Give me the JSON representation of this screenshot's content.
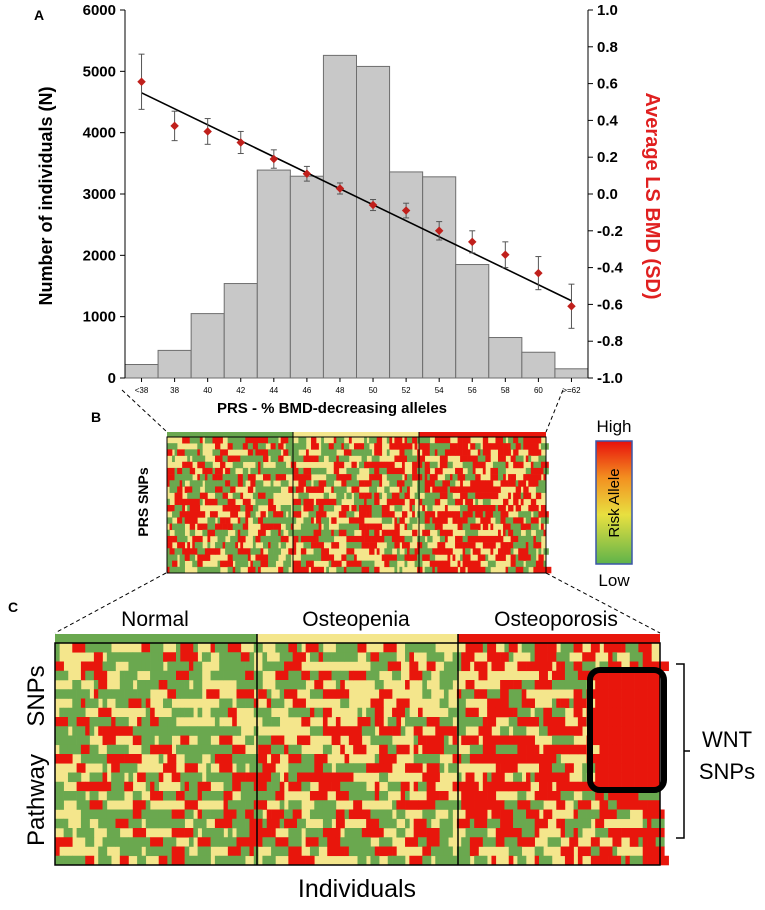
{
  "colors": {
    "bar_fill": "#c8c8c8",
    "bar_stroke": "#6e6e6e",
    "point": "#c0201c",
    "right_axis_label": "#e02020",
    "green": "#6aa84f",
    "yellow": "#f4e68c",
    "red": "#e8160c"
  },
  "panels": {
    "a": "A",
    "b": "B",
    "c": "C"
  },
  "chart_data": {
    "type": "bar",
    "categories": [
      "<38",
      "38",
      "40",
      "42",
      "44",
      "46",
      "48",
      "50",
      "52",
      "54",
      "56",
      "58",
      "60",
      ">=62"
    ],
    "values": [
      220,
      450,
      1050,
      1540,
      3390,
      3290,
      5260,
      5080,
      3360,
      3280,
      1850,
      660,
      420,
      150
    ],
    "ylim": [
      0,
      6000
    ],
    "yticks": [
      0,
      1000,
      2000,
      3000,
      4000,
      5000,
      6000
    ],
    "ylabel": "Number of individuals (N)",
    "xlabel": "PRS - % BMD-decreasing alleles",
    "secondary": {
      "name": "Average LS BMD (SD)",
      "ylim": [
        -1.0,
        1.0
      ],
      "yticks": [
        "-1.0",
        "-0.8",
        "-0.6",
        "-0.4",
        "-0.2",
        "0.0",
        "0.2",
        "0.4",
        "0.6",
        "0.8",
        "1.0"
      ],
      "means": [
        0.61,
        0.37,
        0.34,
        0.28,
        0.19,
        0.11,
        0.03,
        -0.06,
        -0.09,
        -0.2,
        -0.26,
        -0.33,
        -0.43,
        -0.61
      ],
      "err": [
        0.15,
        0.08,
        0.07,
        0.06,
        0.05,
        0.04,
        0.03,
        0.03,
        0.04,
        0.05,
        0.06,
        0.07,
        0.09,
        0.12
      ],
      "fit": [
        0.55,
        -0.58
      ]
    }
  },
  "panel_b": {
    "ylabel": "PRS SNPs",
    "legend": {
      "high": "High",
      "low": "Low",
      "middle": "Risk Allele"
    }
  },
  "panel_c": {
    "groups": [
      "Normal",
      "Osteopenia",
      "Osteoporosis"
    ],
    "ylabel_top": "SNPs",
    "ylabel_bottom": "Pathway",
    "xlabel": "Individuals",
    "bracket_line1": "WNT",
    "bracket_line2": "SNPs"
  }
}
